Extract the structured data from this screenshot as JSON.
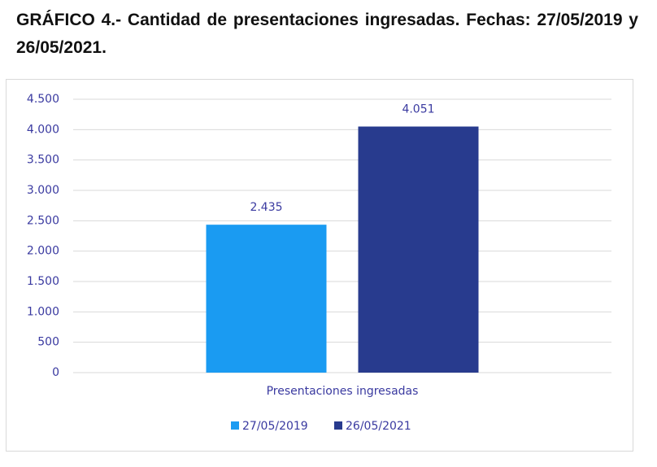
{
  "chart_data": {
    "type": "bar",
    "title": "GRÁFICO 4.- Cantidad de presentaciones ingresadas. Fechas: 27/05/2019 y 26/05/2021.",
    "categories": [
      "Presentaciones ingresadas"
    ],
    "series": [
      {
        "name": "27/05/2019",
        "color": "#1a9bf2",
        "values": [
          2435
        ],
        "value_labels": [
          "2.435"
        ]
      },
      {
        "name": "26/05/2021",
        "color": "#283b8e",
        "values": [
          4051
        ],
        "value_labels": [
          "4.051"
        ]
      }
    ],
    "ylim": [
      0,
      4500
    ],
    "yticks": [
      0,
      500,
      {
        "value": 1000,
        "label": "1.000"
      },
      {
        "value": 1500,
        "label": "1.500"
      },
      {
        "value": 2000,
        "label": "2.000"
      },
      {
        "value": 2500,
        "label": "2.500"
      },
      {
        "value": 3000,
        "label": "3.000"
      },
      {
        "value": 3500,
        "label": "3.500"
      },
      {
        "value": 4000,
        "label": "4.000"
      },
      {
        "value": 4500,
        "label": "4.500"
      }
    ],
    "grid": true
  }
}
